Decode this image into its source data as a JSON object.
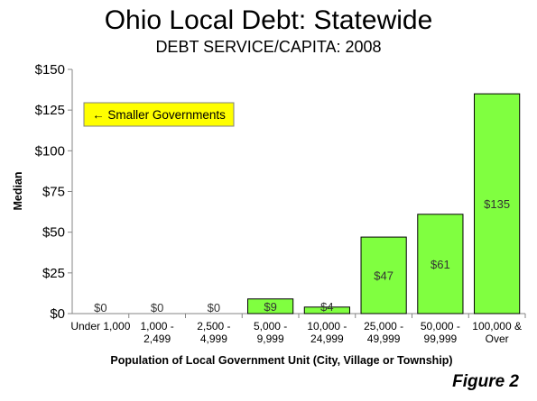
{
  "chart_data": {
    "type": "bar",
    "title": "Ohio Local Debt: Statewide",
    "subtitle": "DEBT SERVICE/CAPITA: 2008",
    "xlabel": "Population of Local Government Unit (City, Village or Township)",
    "ylabel": "Median",
    "ylim": [
      0,
      150
    ],
    "yticks": [
      0,
      25,
      50,
      75,
      100,
      125,
      150
    ],
    "ytick_labels": [
      "$0",
      "$25",
      "$50",
      "$75",
      "$100",
      "$125",
      "$150"
    ],
    "categories": [
      [
        "Under 1,000"
      ],
      [
        "1,000 -",
        "2,499"
      ],
      [
        "2,500 -",
        "4,999"
      ],
      [
        "5,000 -",
        "9,999"
      ],
      [
        "10,000 -",
        "24,999"
      ],
      [
        "25,000 -",
        "49,999"
      ],
      [
        "50,000 -",
        "99,999"
      ],
      [
        "100,000 &",
        "Over"
      ]
    ],
    "values": [
      0,
      0,
      0,
      9,
      4,
      47,
      61,
      135
    ],
    "data_labels": [
      "$0",
      "$0",
      "$0",
      "$9",
      "$4",
      "$47",
      "$61",
      "$135"
    ],
    "bar_color": "#80ff40",
    "annotation": "← Smaller Governments",
    "annotation_color": "#ffff00",
    "grid": false
  },
  "figure_label": "Figure 2"
}
